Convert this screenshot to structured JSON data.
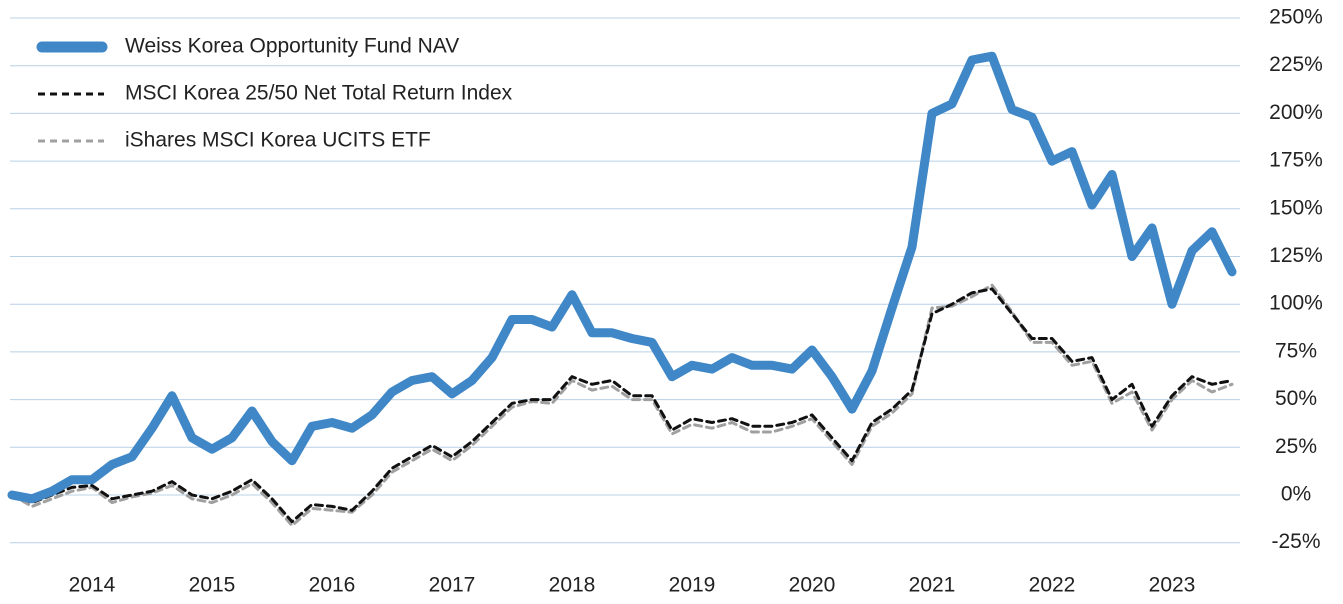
{
  "chart_data": {
    "type": "line",
    "categories": [
      null,
      null,
      null,
      null,
      "2014",
      null,
      null,
      null,
      null,
      null,
      "2015",
      null,
      null,
      null,
      null,
      null,
      "2016",
      null,
      null,
      null,
      null,
      null,
      "2017",
      null,
      null,
      null,
      null,
      null,
      "2018",
      null,
      null,
      null,
      null,
      null,
      "2019",
      null,
      null,
      null,
      null,
      null,
      "2020",
      null,
      null,
      null,
      null,
      null,
      "2021",
      null,
      null,
      null,
      null,
      null,
      "2022",
      null,
      null,
      null,
      null,
      null,
      "2023",
      null,
      null,
      null
    ],
    "series": [
      {
        "name": "Weiss Korea Opportunity Fund NAV",
        "color": "#3f87c7",
        "dash": "solid",
        "values": [
          0,
          -2,
          2,
          8,
          8,
          16,
          20,
          35,
          52,
          30,
          24,
          30,
          44,
          28,
          18,
          36,
          38,
          35,
          42,
          54,
          60,
          62,
          53,
          60,
          72,
          92,
          92,
          88,
          105,
          85,
          85,
          82,
          80,
          62,
          68,
          66,
          72,
          68,
          68,
          66,
          76,
          62,
          45,
          65,
          98,
          130,
          200,
          205,
          228,
          230,
          202,
          198,
          175,
          180,
          152,
          168,
          125,
          140,
          100,
          128,
          138,
          117
        ]
      },
      {
        "name": "MSCI Korea 25/50 Net Total Return Index",
        "color": "#111111",
        "dash": "dashed",
        "values": [
          0,
          -4,
          0,
          4,
          5,
          -2,
          0,
          2,
          7,
          0,
          -2,
          2,
          8,
          -2,
          -14,
          -5,
          -6,
          -8,
          2,
          14,
          20,
          26,
          20,
          28,
          38,
          48,
          50,
          50,
          62,
          58,
          60,
          52,
          52,
          34,
          40,
          38,
          40,
          36,
          36,
          38,
          42,
          30,
          18,
          38,
          45,
          55,
          95,
          100,
          106,
          108,
          95,
          82,
          82,
          70,
          72,
          50,
          58,
          36,
          52,
          62,
          58,
          60
        ]
      },
      {
        "name": "iShares MSCI Korea UCITS ETF",
        "color": "#a0a0a0",
        "dash": "dashed",
        "values": [
          0,
          -6,
          -2,
          2,
          4,
          -4,
          -1,
          1,
          5,
          -2,
          -4,
          0,
          6,
          -4,
          -16,
          -7,
          -8,
          -9,
          0,
          12,
          18,
          24,
          18,
          26,
          36,
          46,
          49,
          48,
          60,
          55,
          57,
          50,
          50,
          32,
          37,
          35,
          38,
          33,
          33,
          36,
          40,
          28,
          16,
          36,
          43,
          53,
          98,
          99,
          104,
          110,
          96,
          80,
          80,
          68,
          70,
          48,
          54,
          34,
          50,
          60,
          54,
          58
        ]
      }
    ],
    "ylim": [
      -35,
      255
    ],
    "yticks": [
      {
        "value": -25,
        "label": "-25%"
      },
      {
        "value": 0,
        "label": "0%"
      },
      {
        "value": 25,
        "label": "25%"
      },
      {
        "value": 50,
        "label": "50%"
      },
      {
        "value": 75,
        "label": "75%"
      },
      {
        "value": 100,
        "label": "100%"
      },
      {
        "value": 125,
        "label": "125%"
      },
      {
        "value": 150,
        "label": "150%"
      },
      {
        "value": 175,
        "label": "175%"
      },
      {
        "value": 200,
        "label": "200%"
      },
      {
        "value": 225,
        "label": "225%"
      },
      {
        "value": 250,
        "label": "250%"
      }
    ],
    "grid": true,
    "legend": "top-left"
  }
}
